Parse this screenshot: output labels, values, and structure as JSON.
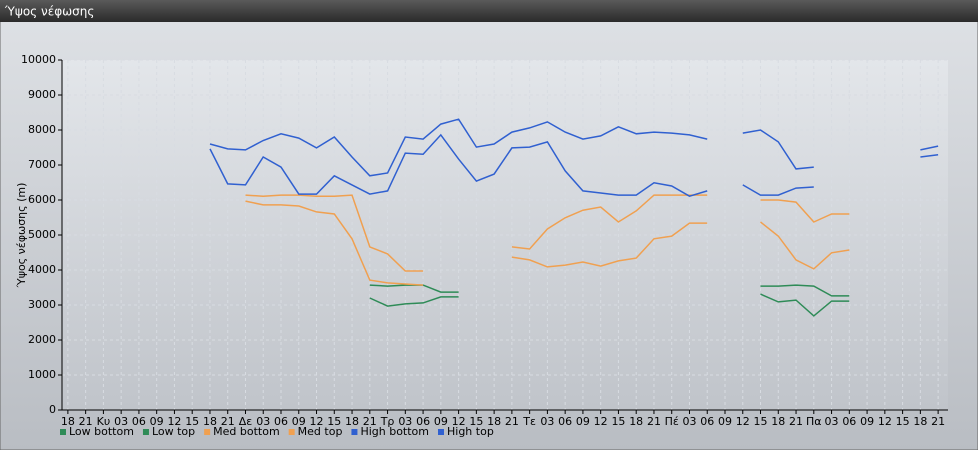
{
  "chart_data": {
    "type": "line",
    "title": "Ύψος νέφωσης",
    "y_label": "Ύψος νέφωσης (m)",
    "categories": [
      "18",
      "21",
      "Κυ",
      "03",
      "06",
      "09",
      "12",
      "15",
      "18",
      "21",
      "Δε",
      "03",
      "06",
      "09",
      "12",
      "15",
      "18",
      "21",
      "Τρ",
      "03",
      "06",
      "09",
      "12",
      "15",
      "18",
      "21",
      "Τε",
      "03",
      "06",
      "09",
      "12",
      "15",
      "18",
      "21",
      "Πέ",
      "03",
      "06",
      "09",
      "12",
      "15",
      "18",
      "21",
      "Πα",
      "03",
      "06",
      "09",
      "12",
      "15",
      "18",
      "21"
    ],
    "ylim": [
      0,
      10000
    ],
    "yticks": [
      0,
      1000,
      2000,
      3000,
      4000,
      5000,
      6000,
      7000,
      8000,
      9000,
      10000
    ],
    "grid": true,
    "legend": "bottom",
    "series": [
      {
        "name": "Low bottom",
        "color": "#2e8b57",
        "values": [
          null,
          null,
          null,
          null,
          null,
          null,
          null,
          null,
          null,
          null,
          null,
          null,
          null,
          null,
          null,
          null,
          null,
          3200,
          2970,
          3030,
          3060,
          3230,
          3230,
          null,
          null,
          null,
          null,
          null,
          null,
          null,
          null,
          null,
          null,
          null,
          null,
          null,
          null,
          null,
          null,
          3310,
          3090,
          3140,
          2690,
          3110,
          3110,
          null,
          null,
          null,
          null,
          null
        ]
      },
      {
        "name": "Low top",
        "color": "#2e8b57",
        "values": [
          null,
          null,
          null,
          null,
          null,
          null,
          null,
          null,
          null,
          null,
          null,
          null,
          null,
          null,
          null,
          null,
          null,
          3570,
          3540,
          3570,
          3570,
          3370,
          3370,
          null,
          null,
          null,
          null,
          null,
          null,
          null,
          null,
          null,
          null,
          null,
          null,
          null,
          null,
          null,
          null,
          3540,
          3540,
          3570,
          3540,
          3260,
          3260,
          null,
          null,
          null,
          null,
          null
        ]
      },
      {
        "name": "Med bottom",
        "color": "#f0a050",
        "values": [
          null,
          null,
          null,
          null,
          null,
          null,
          null,
          null,
          null,
          null,
          5970,
          5860,
          5860,
          5830,
          5660,
          5600,
          4890,
          3710,
          3630,
          3600,
          3570,
          null,
          null,
          null,
          null,
          4370,
          4290,
          4090,
          4140,
          4230,
          4110,
          4260,
          4340,
          4890,
          4970,
          5340,
          5340,
          null,
          null,
          5370,
          4970,
          4290,
          4030,
          4490,
          4570,
          null,
          null,
          null,
          null,
          null
        ]
      },
      {
        "name": "Med top",
        "color": "#f0a050",
        "values": [
          null,
          null,
          null,
          null,
          null,
          null,
          null,
          null,
          null,
          null,
          6140,
          6110,
          6140,
          6140,
          6110,
          6110,
          6140,
          4660,
          4460,
          3970,
          3970,
          null,
          null,
          null,
          null,
          4660,
          4600,
          5170,
          5490,
          5710,
          5800,
          5370,
          5690,
          6140,
          6140,
          6140,
          6140,
          null,
          null,
          6000,
          6000,
          5940,
          5370,
          5600,
          5600,
          null,
          null,
          null,
          null,
          null
        ]
      },
      {
        "name": "High bottom",
        "color": "#3060d0",
        "values": [
          null,
          null,
          null,
          null,
          null,
          null,
          null,
          null,
          7460,
          6460,
          6430,
          7230,
          6940,
          6170,
          6170,
          6690,
          6430,
          6170,
          6260,
          7340,
          7310,
          7860,
          7170,
          6540,
          6740,
          7490,
          7510,
          7660,
          6830,
          6260,
          6200,
          6140,
          6140,
          6490,
          6400,
          6110,
          6260,
          null,
          6430,
          6140,
          6140,
          6340,
          6370,
          null,
          null,
          null,
          null,
          null,
          7230,
          7290
        ]
      },
      {
        "name": "High top",
        "color": "#3060d0",
        "values": [
          null,
          null,
          null,
          null,
          null,
          null,
          null,
          null,
          7600,
          7460,
          7430,
          7700,
          7890,
          7770,
          7490,
          7800,
          7230,
          6690,
          6770,
          7800,
          7740,
          8170,
          8310,
          7510,
          7600,
          7940,
          8060,
          8230,
          7940,
          7740,
          7830,
          8090,
          7890,
          7940,
          7910,
          7860,
          7740,
          null,
          7910,
          8000,
          7660,
          6890,
          6940,
          null,
          null,
          null,
          null,
          null,
          7430,
          7540
        ]
      }
    ]
  }
}
